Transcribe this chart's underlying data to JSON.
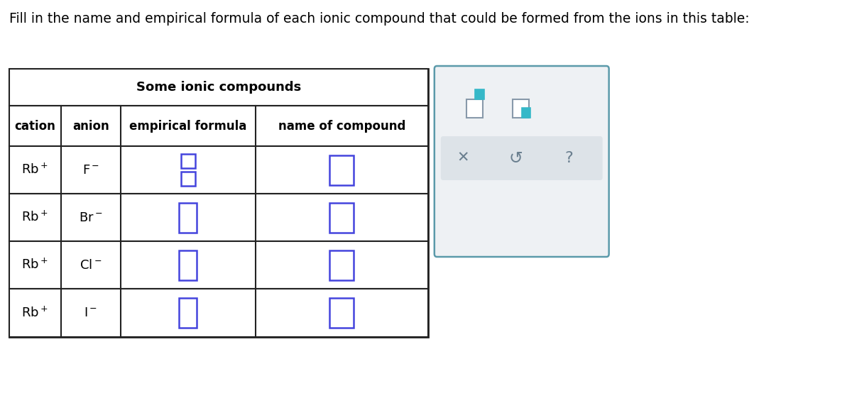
{
  "title": "Fill in the name and empirical formula of each ionic compound that could be formed from the ions in this table:",
  "table_title": "Some ionic compounds",
  "col_headers": [
    "cation",
    "anion",
    "empirical formula",
    "name of compound"
  ],
  "cations": [
    "Rb$^+$",
    "Rb$^+$",
    "Rb$^+$",
    "Rb$^+$"
  ],
  "anions": [
    "F$^-$",
    "Br$^-$",
    "Cl$^-$",
    "I$^-$"
  ],
  "bg_color": "#ffffff",
  "title_color": "#000000",
  "table_title_color": "#000000",
  "header_text_color": "#000000",
  "cell_text_color": "#000000",
  "input_box_color_ef": "#4444dd",
  "input_box_color_name": "#4444dd",
  "border_color": "#222222",
  "panel_bg": "#eef1f4",
  "panel_border": "#5b9aaa",
  "icon_gray": "#8899aa",
  "icon_teal": "#36b8c8",
  "bar_bg": "#dde3e8",
  "symbol_color": "#6a7f8f"
}
